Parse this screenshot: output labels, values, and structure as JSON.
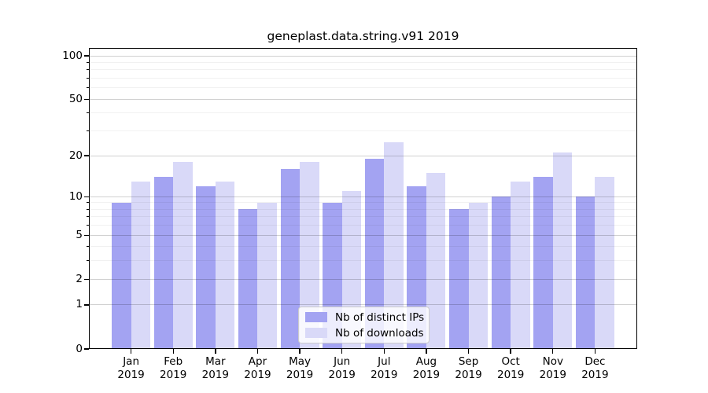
{
  "title": "geneplast.data.string.v91 2019",
  "chart_data": {
    "type": "bar",
    "title": "geneplast.data.string.v91 2019",
    "categories": [
      "Jan",
      "Feb",
      "Mar",
      "Apr",
      "May",
      "Jun",
      "Jul",
      "Aug",
      "Sep",
      "Oct",
      "Nov",
      "Dec"
    ],
    "category_year": "2019",
    "series": [
      {
        "name": "Nb of distinct IPs",
        "color": "#a3a3f2",
        "values": [
          9,
          14,
          12,
          8,
          16,
          9,
          19,
          12,
          8,
          10,
          14,
          10
        ]
      },
      {
        "name": "Nb of downloads",
        "color": "#d9d9f8",
        "values": [
          13,
          18,
          13,
          9,
          18,
          11,
          25,
          15,
          9,
          13,
          21,
          14
        ]
      }
    ],
    "xlabel": "",
    "ylabel": "",
    "y_scale": "log1p",
    "y_ticks": [
      0,
      1,
      2,
      5,
      10,
      20,
      50,
      100
    ],
    "y_minor_ticks": [
      3,
      4,
      6,
      7,
      8,
      9,
      30,
      40,
      60,
      70,
      80,
      90
    ],
    "ylim": [
      0,
      113.5
    ],
    "grid": true,
    "legend_position": "lower center",
    "spine_color": "#000000",
    "background_color": "#ffffff"
  }
}
